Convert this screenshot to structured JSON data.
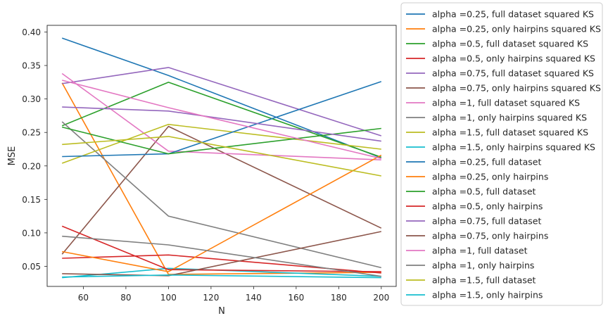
{
  "chart_data": {
    "type": "line",
    "xlabel": "N",
    "ylabel": "MSE",
    "xlim": [
      43,
      207
    ],
    "ylim": [
      0.02,
      0.41
    ],
    "xticks": [
      60,
      80,
      100,
      120,
      140,
      160,
      180,
      200
    ],
    "yticks": [
      0.05,
      0.1,
      0.15,
      0.2,
      0.25,
      0.3,
      0.35,
      0.4
    ],
    "ytick_labels": [
      "0.05",
      "0.10",
      "0.15",
      "0.20",
      "0.25",
      "0.30",
      "0.35",
      "0.40"
    ],
    "grid": false,
    "legend_placement": "outside right",
    "x": [
      50,
      100,
      200
    ],
    "series": [
      {
        "name": "alpha =0.25, full dataset squared KS",
        "color": "#1f77b4",
        "values": [
          0.391,
          0.335,
          0.212
        ]
      },
      {
        "name": "alpha =0.25, only hairpins squared KS",
        "color": "#ff7f0e",
        "values": [
          0.324,
          0.038,
          0.041
        ]
      },
      {
        "name": "alpha =0.5, full dataset squared KS",
        "color": "#2ca02c",
        "values": [
          0.26,
          0.325,
          0.213
        ]
      },
      {
        "name": "alpha =0.5, only hairpins squared KS",
        "color": "#d62728",
        "values": [
          0.062,
          0.067,
          0.04
        ]
      },
      {
        "name": "alpha =0.75, full dataset squared KS",
        "color": "#9467bd",
        "values": [
          0.323,
          0.347,
          0.245
        ]
      },
      {
        "name": "alpha =0.75, only hairpins squared KS",
        "color": "#8c564b",
        "values": [
          0.068,
          0.259,
          0.107
        ]
      },
      {
        "name": "alpha =1, full dataset squared KS",
        "color": "#e377c2",
        "values": [
          0.338,
          0.222,
          0.209
        ]
      },
      {
        "name": "alpha =1, only hairpins squared KS",
        "color": "#7f7f7f",
        "values": [
          0.266,
          0.125,
          0.048
        ]
      },
      {
        "name": "alpha =1.5, full dataset squared KS",
        "color": "#bcbd22",
        "values": [
          0.204,
          0.262,
          0.225
        ]
      },
      {
        "name": "alpha =1.5, only hairpins squared KS",
        "color": "#17becf",
        "values": [
          0.033,
          0.047,
          0.035
        ]
      },
      {
        "name": "alpha =0.25, full dataset",
        "color": "#1f77b4",
        "values": [
          0.214,
          0.218,
          0.326
        ]
      },
      {
        "name": "alpha =0.25, only hairpins",
        "color": "#ff7f0e",
        "values": [
          0.072,
          0.042,
          0.216
        ]
      },
      {
        "name": "alpha =0.5, full dataset",
        "color": "#2ca02c",
        "values": [
          0.258,
          0.218,
          0.256
        ]
      },
      {
        "name": "alpha =0.5, only hairpins",
        "color": "#d62728",
        "values": [
          0.11,
          0.045,
          0.042
        ]
      },
      {
        "name": "alpha =0.75, full dataset",
        "color": "#9467bd",
        "values": [
          0.288,
          0.282,
          0.237
        ]
      },
      {
        "name": "alpha =0.75, only hairpins",
        "color": "#8c564b",
        "values": [
          0.039,
          0.036,
          0.102
        ]
      },
      {
        "name": "alpha =1, full dataset",
        "color": "#e377c2",
        "values": [
          0.328,
          0.287,
          0.211
        ]
      },
      {
        "name": "alpha =1, only hairpins",
        "color": "#7f7f7f",
        "values": [
          0.095,
          0.082,
          0.035
        ]
      },
      {
        "name": "alpha =1.5, full dataset",
        "color": "#bcbd22",
        "values": [
          0.232,
          0.244,
          0.185
        ]
      },
      {
        "name": "alpha =1.5, only hairpins",
        "color": "#17becf",
        "values": [
          0.034,
          0.037,
          0.033
        ]
      }
    ]
  }
}
